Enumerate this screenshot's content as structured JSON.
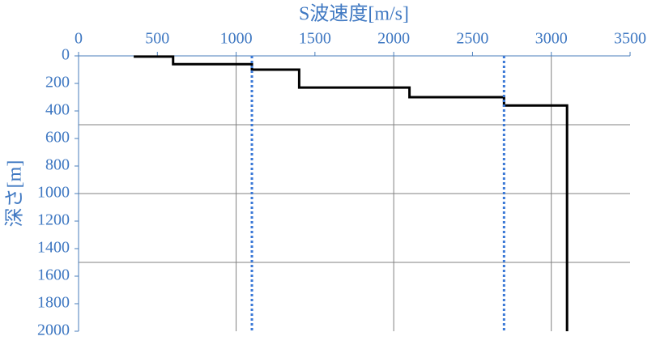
{
  "chart_data": {
    "type": "line",
    "xlabel": "S波速度[m/s]",
    "ylabel": "深さ[m]",
    "x_axis_position": "top",
    "y_inverted": true,
    "xlim": [
      0,
      3500
    ],
    "xticks": [
      0,
      500,
      1000,
      1500,
      2000,
      2500,
      3000,
      3500
    ],
    "ylim": [
      0,
      2000
    ],
    "yticks": [
      0,
      200,
      400,
      600,
      800,
      1000,
      1200,
      1400,
      1600,
      1800,
      2000
    ],
    "x_gridlines": [
      1000,
      2000,
      3000
    ],
    "y_gridlines": [
      500,
      1000,
      1500
    ],
    "series": [
      {
        "color": "#000000",
        "dash": "solid",
        "x": [
          350,
          600,
          600,
          1100,
          1100,
          1400,
          1400,
          2100,
          2100,
          2700,
          2700,
          3100,
          3100
        ],
        "y": [
          5,
          5,
          60,
          60,
          100,
          100,
          230,
          230,
          300,
          300,
          360,
          360,
          2000
        ]
      },
      {
        "color": "#3a78d6",
        "dash": "dotted",
        "x": [
          1100,
          1100
        ],
        "y": [
          0,
          2000
        ]
      },
      {
        "color": "#3a78d6",
        "dash": "dotted",
        "x": [
          2700,
          2700
        ],
        "y": [
          0,
          2000
        ]
      }
    ]
  }
}
